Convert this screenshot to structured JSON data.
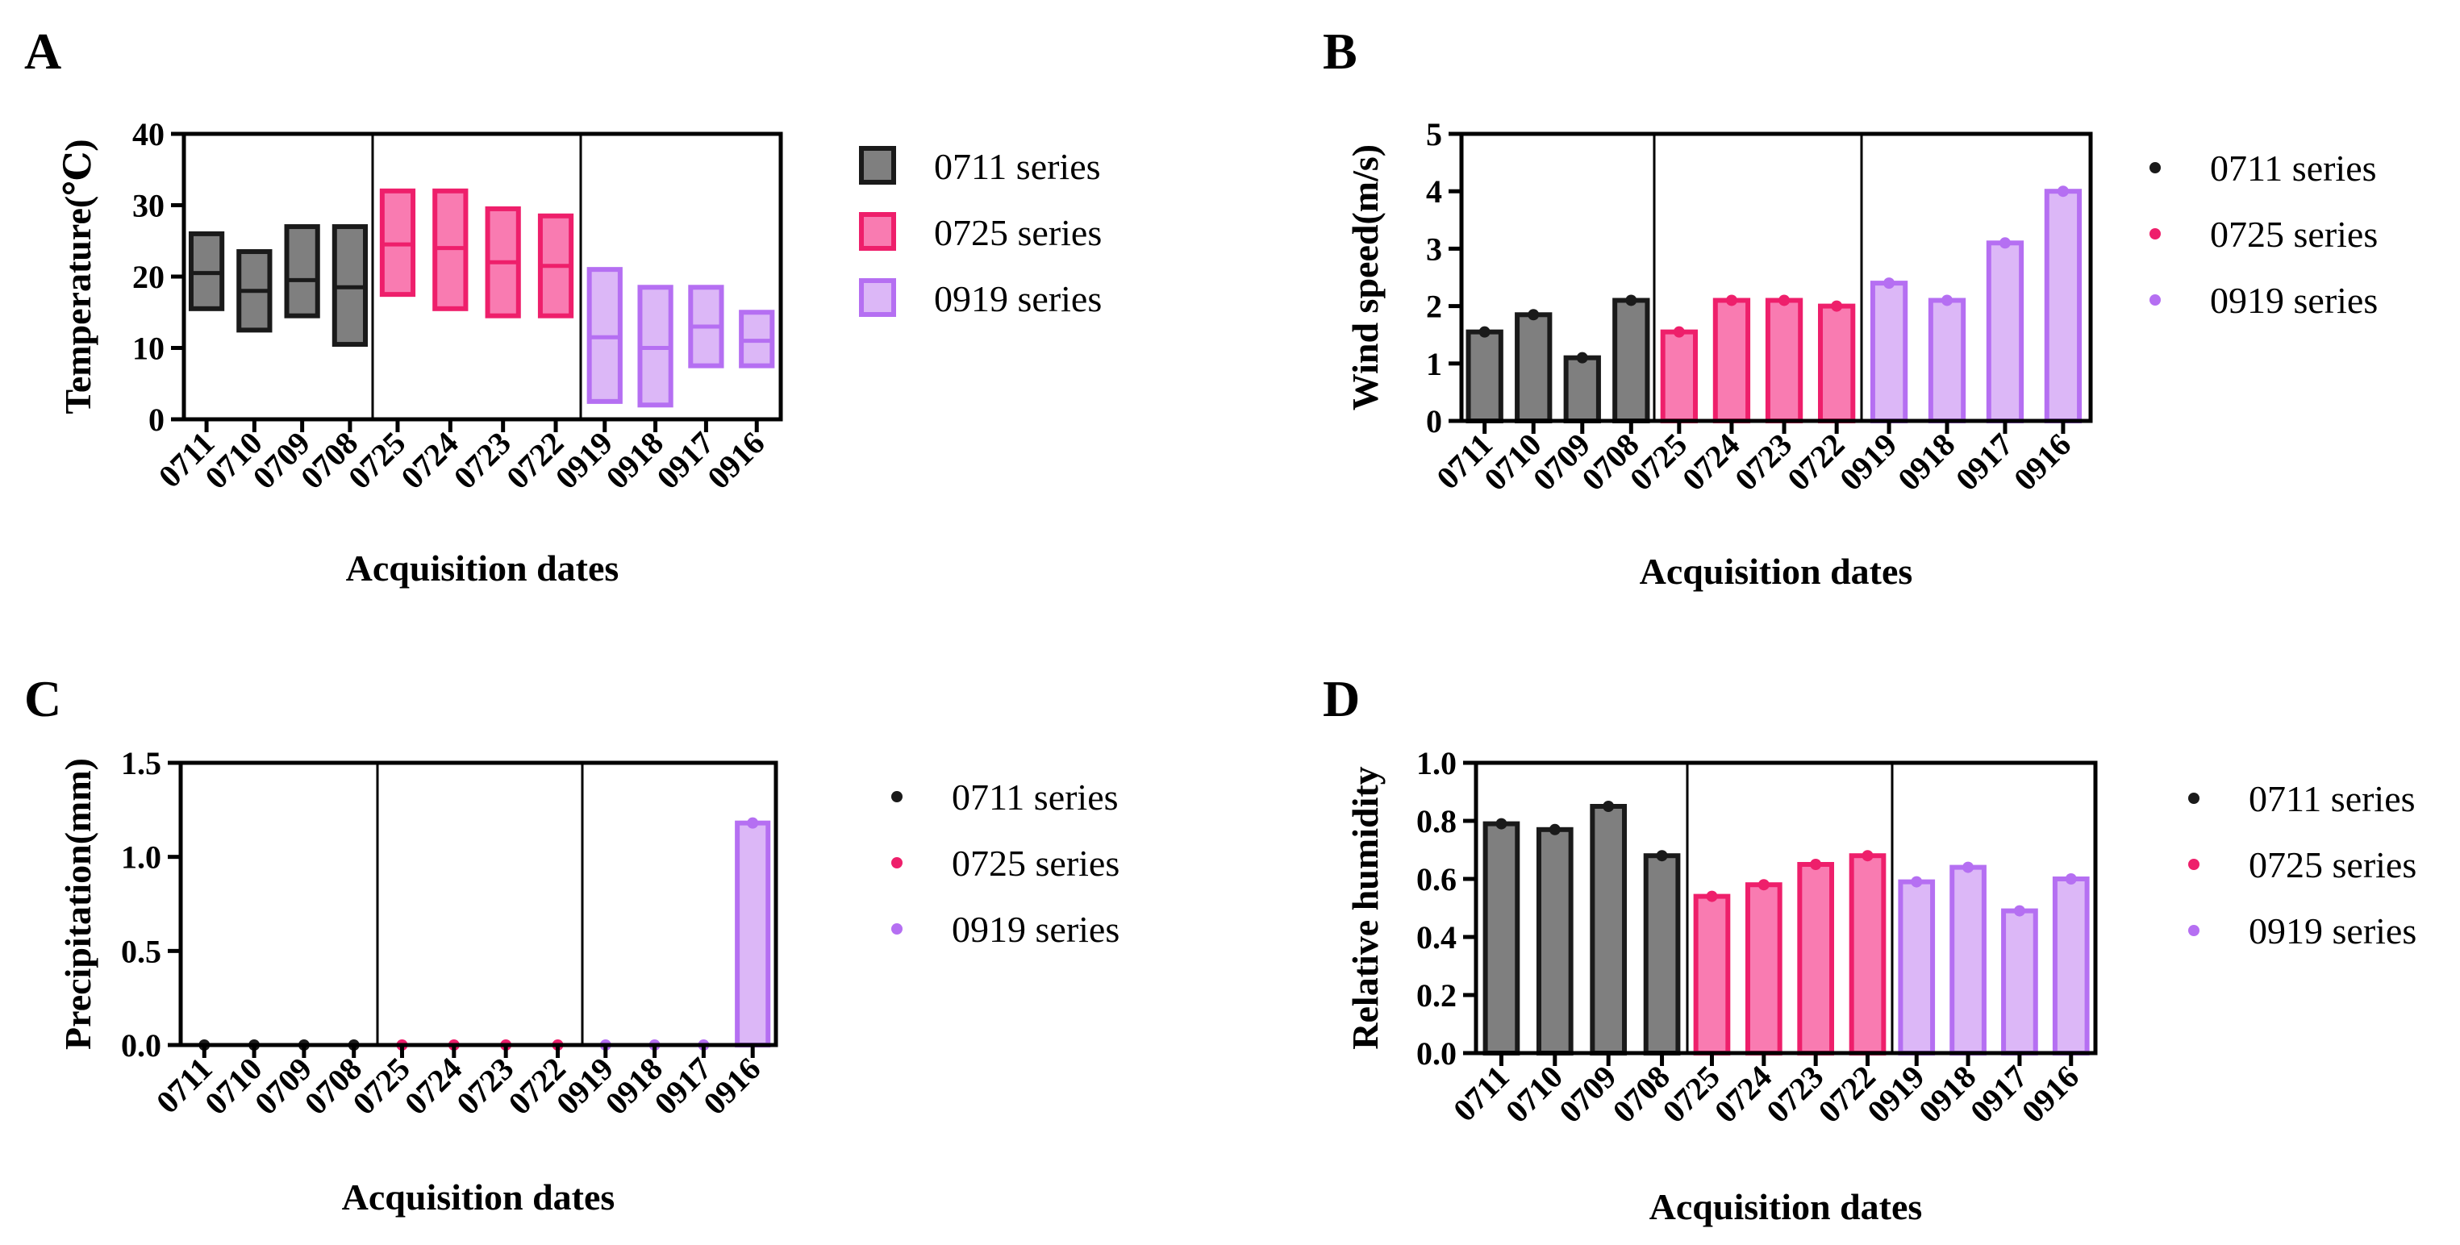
{
  "colors": {
    "0711": {
      "fill": "#7f7f7f",
      "stroke": "#1a1a1a"
    },
    "0725": {
      "fill": "#f97bb1",
      "stroke": "#ee1f6b"
    },
    "0919": {
      "fill": "#dcb7f7",
      "stroke": "#b56ff2"
    }
  },
  "legend": [
    "0711 series",
    "0725 series",
    "0919 series"
  ],
  "chart_data": [
    {
      "panel": "A",
      "type": "floating-bar",
      "ylabel": "Temperature(℃)",
      "xlabel": "Acquisition dates",
      "ylim": [
        0,
        40
      ],
      "yticks": [
        "0",
        "10",
        "20",
        "30",
        "40"
      ],
      "legend_style": "box",
      "groups": [
        {
          "series": "0711",
          "categories": [
            "0711",
            "0710",
            "0709",
            "0708"
          ],
          "low": [
            15.5,
            12.5,
            14.5,
            10.5
          ],
          "high": [
            26,
            23.5,
            27,
            27
          ],
          "mid": [
            20.5,
            18,
            19.5,
            18.5
          ]
        },
        {
          "series": "0725",
          "categories": [
            "0725",
            "0724",
            "0723",
            "0722"
          ],
          "low": [
            17.5,
            15.5,
            14.5,
            14.5
          ],
          "high": [
            32,
            32,
            29.5,
            28.5
          ],
          "mid": [
            24.5,
            24,
            22,
            21.5
          ]
        },
        {
          "series": "0919",
          "categories": [
            "0919",
            "0918",
            "0917",
            "0916"
          ],
          "low": [
            2.5,
            2,
            7.5,
            7.5
          ],
          "high": [
            21,
            18.5,
            18.5,
            15
          ],
          "mid": [
            11.5,
            10,
            13,
            11
          ]
        }
      ]
    },
    {
      "panel": "B",
      "type": "bar",
      "ylabel": "Wind speed(m/s)",
      "xlabel": "Acquisition dates",
      "ylim": [
        0,
        5
      ],
      "yticks": [
        "0",
        "1",
        "2",
        "3",
        "4",
        "5"
      ],
      "legend_style": "dot",
      "groups": [
        {
          "series": "0711",
          "categories": [
            "0711",
            "0710",
            "0709",
            "0708"
          ],
          "values": [
            1.55,
            1.85,
            1.1,
            2.1
          ]
        },
        {
          "series": "0725",
          "categories": [
            "0725",
            "0724",
            "0723",
            "0722"
          ],
          "values": [
            1.55,
            2.1,
            2.1,
            2.0
          ]
        },
        {
          "series": "0919",
          "categories": [
            "0919",
            "0918",
            "0917",
            "0916"
          ],
          "values": [
            2.4,
            2.1,
            3.1,
            4.0
          ]
        }
      ]
    },
    {
      "panel": "C",
      "type": "bar",
      "ylabel": "Precipitation(mm)",
      "xlabel": "Acquisition dates",
      "ylim": [
        0,
        1.5
      ],
      "yticks": [
        "0.0",
        "0.5",
        "1.0",
        "1.5"
      ],
      "legend_style": "dot",
      "groups": [
        {
          "series": "0711",
          "categories": [
            "0711",
            "0710",
            "0709",
            "0708"
          ],
          "values": [
            0,
            0,
            0,
            0
          ]
        },
        {
          "series": "0725",
          "categories": [
            "0725",
            "0724",
            "0723",
            "0722"
          ],
          "values": [
            0,
            0,
            0,
            0
          ]
        },
        {
          "series": "0919",
          "categories": [
            "0919",
            "0918",
            "0917",
            "0916"
          ],
          "values": [
            0,
            0,
            0,
            1.18
          ]
        }
      ]
    },
    {
      "panel": "D",
      "type": "bar",
      "ylabel": "Relative humidity",
      "xlabel": "Acquisition dates",
      "ylim": [
        0,
        1.0
      ],
      "yticks": [
        "0.0",
        "0.2",
        "0.4",
        "0.6",
        "0.8",
        "1.0"
      ],
      "legend_style": "dot",
      "groups": [
        {
          "series": "0711",
          "categories": [
            "0711",
            "0710",
            "0709",
            "0708"
          ],
          "values": [
            0.79,
            0.77,
            0.85,
            0.68
          ]
        },
        {
          "series": "0725",
          "categories": [
            "0725",
            "0724",
            "0723",
            "0722"
          ],
          "values": [
            0.54,
            0.58,
            0.65,
            0.68
          ]
        },
        {
          "series": "0919",
          "categories": [
            "0919",
            "0918",
            "0917",
            "0916"
          ],
          "values": [
            0.59,
            0.64,
            0.49,
            0.6
          ]
        }
      ]
    }
  ]
}
